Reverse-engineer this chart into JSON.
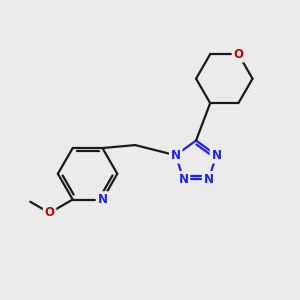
{
  "bg_color": "#ebebeb",
  "bond_color": "#1a1a1a",
  "nitrogen_color": "#2020ff",
  "oxygen_color": "#cc0000",
  "font_size": 8.5,
  "line_width": 1.6,
  "figsize": [
    3.0,
    3.0
  ],
  "dpi": 100,
  "xlim": [
    0,
    10
  ],
  "ylim": [
    0,
    10
  ]
}
